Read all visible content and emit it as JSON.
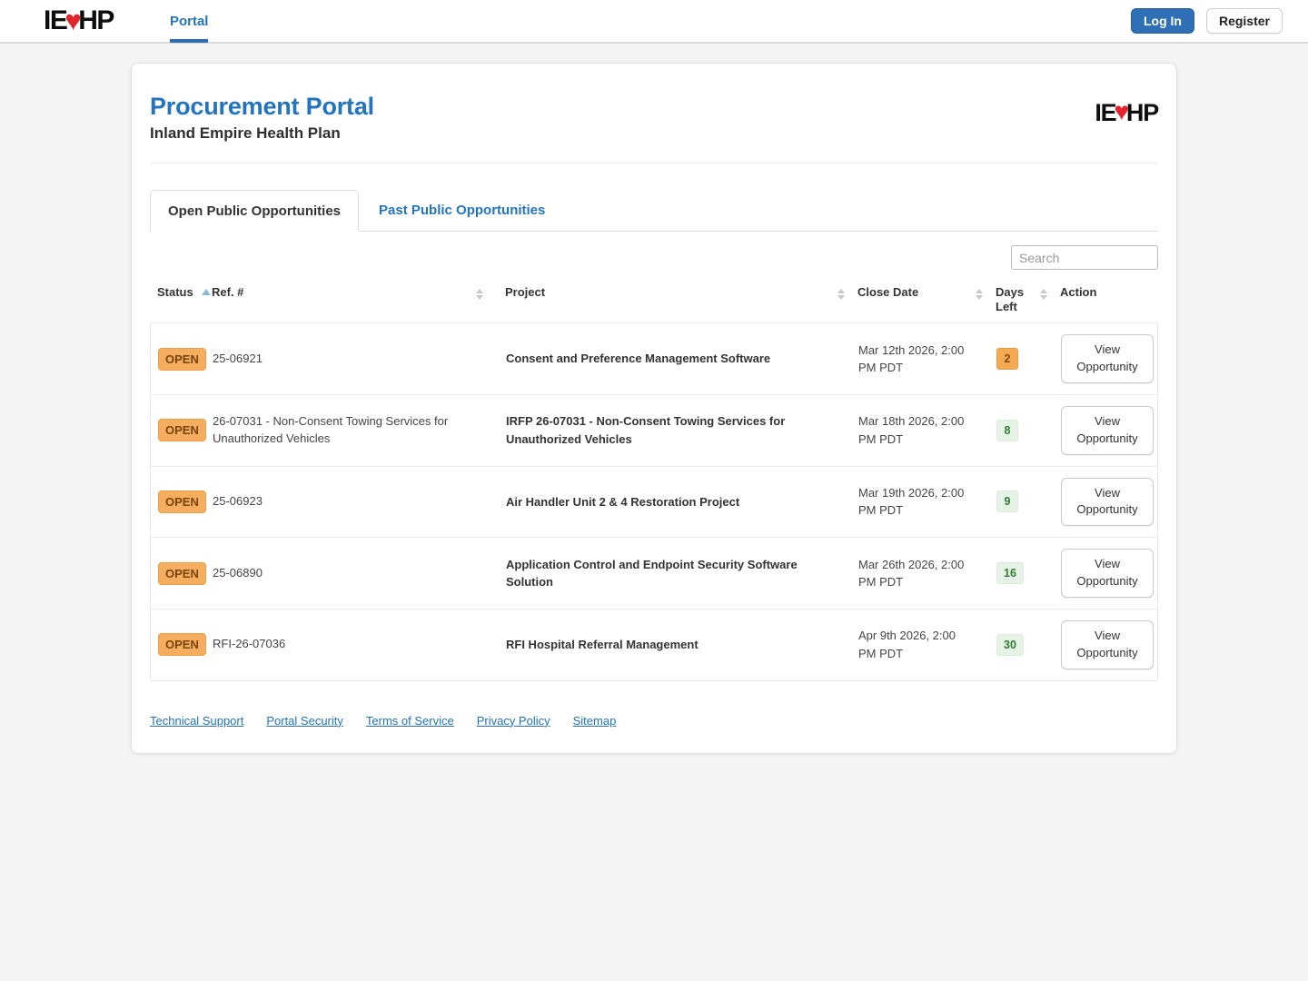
{
  "navbar": {
    "logo": {
      "left": "IE",
      "heart": "♥",
      "right": "HP"
    },
    "portal_link": "Portal",
    "login_button": "Log In",
    "register_button": "Register"
  },
  "header": {
    "title": "Procurement Portal",
    "subtitle": "Inland Empire Health Plan"
  },
  "tabs": [
    {
      "label": "Open Public Opportunities",
      "active": true
    },
    {
      "label": "Past Public Opportunities",
      "active": false
    }
  ],
  "search": {
    "placeholder": "Search"
  },
  "table": {
    "columns": [
      "Status",
      "Ref. #",
      "Project",
      "Close Date",
      "Days Left",
      "Action"
    ],
    "sorted_column": "Status",
    "sort_direction": "asc",
    "rows": [
      {
        "status": "OPEN",
        "ref": "25-06921",
        "project": "Consent and Preference Management Software",
        "close_date": "Mar 12th 2026, 2:00 PM PDT",
        "days_left": "2",
        "days_left_color": "orange",
        "action": "View Opportunity"
      },
      {
        "status": "OPEN",
        "ref": "26-07031 - Non-Consent Towing Services for Unauthorized Vehicles",
        "project": "IRFP 26-07031 - Non-Consent Towing Services for Unauthorized Vehicles",
        "close_date": "Mar 18th 2026, 2:00 PM PDT",
        "days_left": "8",
        "days_left_color": "green",
        "action": "View Opportunity"
      },
      {
        "status": "OPEN",
        "ref": "25-06923",
        "project": "Air Handler Unit 2 & 4 Restoration Project",
        "close_date": "Mar 19th 2026, 2:00 PM PDT",
        "days_left": "9",
        "days_left_color": "green",
        "action": "View Opportunity"
      },
      {
        "status": "OPEN",
        "ref": "25-06890",
        "project": "Application Control and Endpoint Security Software Solution",
        "close_date": "Mar 26th 2026, 2:00 PM PDT",
        "days_left": "16",
        "days_left_color": "green",
        "action": "View Opportunity"
      },
      {
        "status": "OPEN",
        "ref": "RFI-26-07036",
        "project": "RFI Hospital Referral Management",
        "close_date": "Apr 9th 2026, 2:00 PM PDT",
        "days_left": "30",
        "days_left_color": "green",
        "action": "View Opportunity"
      }
    ]
  },
  "footer": {
    "links": [
      "Technical Support",
      "Portal Security",
      "Terms of Service",
      "Privacy Policy",
      "Sitemap"
    ]
  },
  "colors": {
    "accent_blue": "#2374bd",
    "login_button_bg": "#2f6fb5",
    "heart_red": "#e4232b",
    "open_badge_bg": "#f5ad5f",
    "days_orange_bg": "#f5a952",
    "days_green_bg": "#e7f2e7",
    "days_green_text": "#2e7d32"
  }
}
